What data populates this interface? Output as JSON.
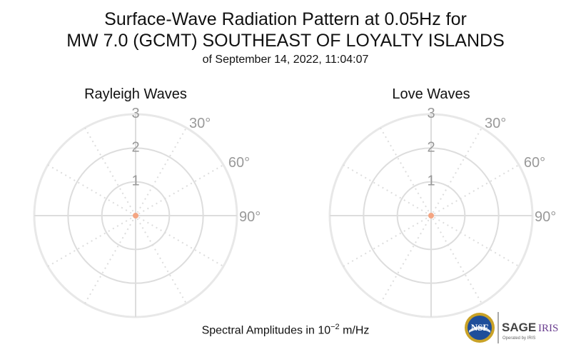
{
  "title": {
    "line1": "Surface-Wave Radiation Pattern at 0.05Hz for",
    "line2": "MW 7.0 (GCMT) SOUTHEAST OF LOYALTY ISLANDS",
    "subtitle": "of September 14, 2022, 11:04:07"
  },
  "footer": {
    "prefix": "Spectral Amplitudes in 10",
    "exponent": "−2",
    "suffix": " m/Hz"
  },
  "logos": {
    "nsf": "NSF",
    "sage": "SAGE",
    "iris": "IRIS",
    "operated_by": "Operated by IRIS"
  },
  "colors": {
    "grid": "#dddddd",
    "tick_label": "#999999",
    "marker": "#f4a582"
  },
  "chart_data": [
    {
      "type": "polar",
      "title": "Rayleigh Waves",
      "radial_ticks": [
        "1",
        "2",
        "3"
      ],
      "radial_range": [
        0,
        3
      ],
      "angular_ticks": [
        "30°",
        "60°",
        "90°"
      ],
      "grid": true,
      "points": [
        {
          "angle": 0,
          "r": 0
        }
      ]
    },
    {
      "type": "polar",
      "title": "Love Waves",
      "radial_ticks": [
        "1",
        "2",
        "3"
      ],
      "radial_range": [
        0,
        3
      ],
      "angular_ticks": [
        "30°",
        "60°",
        "90°"
      ],
      "grid": true,
      "points": [
        {
          "angle": 0,
          "r": 0
        }
      ]
    }
  ]
}
